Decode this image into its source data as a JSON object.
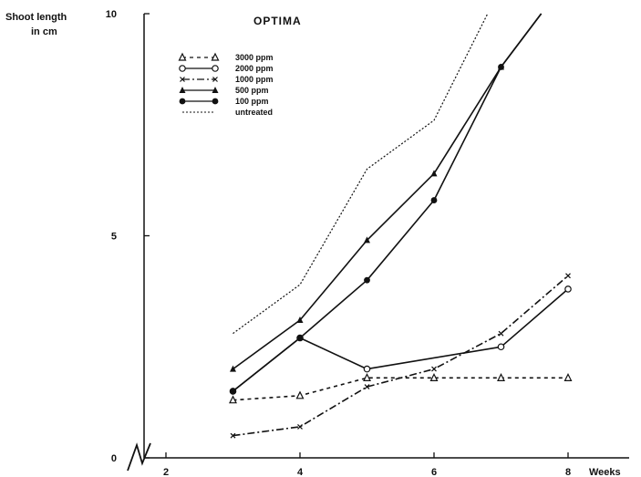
{
  "chart_data": {
    "type": "line",
    "title": "OPTIMA",
    "ylabel_line1": "Shoot length",
    "ylabel_line2": "in cm",
    "xlabel": "Weeks",
    "xlim": [
      1.8,
      8.8
    ],
    "ylim": [
      0,
      10
    ],
    "x_ticks": [
      2,
      4,
      6,
      8
    ],
    "y_ticks": [
      0,
      5,
      10
    ],
    "grid": false,
    "legend_position": "top-left",
    "series": [
      {
        "name": "3000 ppm",
        "marker": "triangle-open",
        "dash": "4 4",
        "x": [
          3,
          4,
          5,
          6,
          7,
          8
        ],
        "y": [
          1.3,
          1.4,
          1.8,
          1.8,
          1.8,
          1.8
        ]
      },
      {
        "name": "2000 ppm",
        "marker": "circle-open",
        "dash": "",
        "x": [
          3,
          4,
          5,
          7,
          8
        ],
        "y": [
          1.5,
          2.7,
          2.0,
          2.5,
          3.8
        ]
      },
      {
        "name": "1000 ppm",
        "marker": "cross",
        "dash": "8 3 2 3",
        "x": [
          3,
          4,
          5,
          6,
          7,
          8
        ],
        "y": [
          0.5,
          0.7,
          1.6,
          2.0,
          2.8,
          4.1
        ]
      },
      {
        "name": "500 ppm",
        "marker": "triangle",
        "dash": "",
        "x": [
          3,
          4,
          5,
          6,
          7,
          7.6
        ],
        "y": [
          2.0,
          3.1,
          4.9,
          6.4,
          8.8,
          10.0
        ]
      },
      {
        "name": "100 ppm",
        "marker": "circle",
        "dash": "",
        "x": [
          3,
          4,
          5,
          6,
          7,
          7.6
        ],
        "y": [
          1.5,
          2.7,
          4.0,
          5.8,
          8.8,
          10.0
        ]
      },
      {
        "name": "untreated",
        "marker": "none",
        "dash": "2 2",
        "x": [
          3,
          4,
          5,
          6,
          6.8
        ],
        "y": [
          2.8,
          3.9,
          6.5,
          7.6,
          10.0
        ]
      }
    ]
  }
}
